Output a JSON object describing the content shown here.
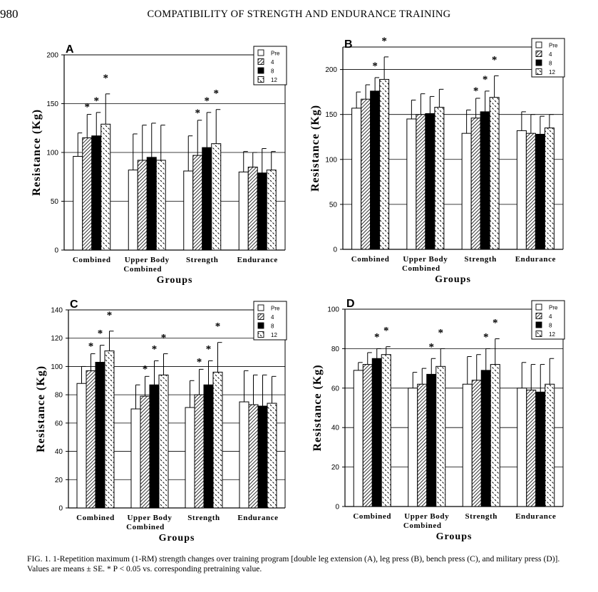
{
  "header": {
    "page_number": "980",
    "running_title": "COMPATIBILITY OF STRENGTH AND ENDURANCE TRAINING"
  },
  "caption": {
    "label": "FIG. 1.",
    "text": "1-Repetition maximum (1-RM) strength changes over training program [double leg extension (A), leg press (B), bench press (C), and military press (D)]. Values are means ± SE. * P < 0.05 vs. corresponding pretraining value."
  },
  "colors": {
    "Pre": "#ffffff",
    "4": "hatched",
    "8": "#000000",
    "12": "dashed"
  },
  "chart_data": [
    {
      "panel": "A",
      "type": "bar",
      "ylabel": "Resistance (Kg)",
      "xlabel": "Groups",
      "categories": [
        "Combined",
        "Upper Body Combined",
        "Strength",
        "Endurance"
      ],
      "ylim": [
        0,
        200
      ],
      "yticks": [
        0,
        50,
        100,
        150,
        200
      ],
      "legend": "top-right",
      "error_bars": "SE",
      "series": [
        {
          "name": "Pre",
          "values": [
            96,
            82,
            81,
            80
          ],
          "error_top": [
            120,
            119,
            117,
            101
          ],
          "significant": [
            false,
            false,
            false,
            false
          ]
        },
        {
          "name": "4",
          "values": [
            115,
            92,
            97,
            85
          ],
          "error_top": [
            139,
            128,
            133,
            100
          ],
          "significant": [
            true,
            false,
            true,
            false
          ]
        },
        {
          "name": "8",
          "values": [
            117,
            95,
            105,
            79
          ],
          "error_top": [
            141,
            130,
            141,
            104
          ],
          "significant": [
            true,
            false,
            true,
            false
          ]
        },
        {
          "name": "12",
          "values": [
            129,
            92,
            109,
            82
          ],
          "error_top": [
            160,
            128,
            144,
            101
          ],
          "significant": [
            true,
            false,
            true,
            false
          ]
        }
      ]
    },
    {
      "panel": "B",
      "type": "bar",
      "ylabel": "Resistance (Kg)",
      "xlabel": "Groups",
      "categories": [
        "Combined",
        "Upper Body Combined",
        "Strength",
        "Endurance"
      ],
      "ylim": [
        0,
        225
      ],
      "yticks": [
        0,
        50,
        100,
        150,
        200
      ],
      "legend": "top-right",
      "error_bars": "SE",
      "series": [
        {
          "name": "Pre",
          "values": [
            157,
            145,
            129,
            132
          ],
          "error_top": [
            175,
            166,
            155,
            153
          ],
          "significant": [
            false,
            false,
            false,
            false
          ]
        },
        {
          "name": "4",
          "values": [
            167,
            150,
            146,
            129
          ],
          "error_top": [
            183,
            173,
            168,
            150
          ],
          "significant": [
            false,
            false,
            true,
            false
          ]
        },
        {
          "name": "8",
          "values": [
            176,
            151,
            153,
            128
          ],
          "error_top": [
            191,
            170,
            176,
            148
          ],
          "significant": [
            true,
            false,
            true,
            false
          ]
        },
        {
          "name": "12",
          "values": [
            189,
            158,
            169,
            135
          ],
          "error_top": [
            214,
            178,
            193,
            150
          ],
          "significant": [
            true,
            false,
            true,
            false
          ]
        }
      ]
    },
    {
      "panel": "C",
      "type": "bar",
      "ylabel": "Resistance (Kg)",
      "xlabel": "Groups",
      "categories": [
        "Combined",
        "Upper Body Combined",
        "Strength",
        "Endurance"
      ],
      "ylim": [
        0,
        140
      ],
      "yticks": [
        0,
        20,
        40,
        60,
        80,
        100,
        120,
        140
      ],
      "legend": "top-right",
      "error_bars": "SE",
      "series": [
        {
          "name": "Pre",
          "values": [
            88,
            70,
            71,
            75
          ],
          "error_top": [
            100,
            87,
            90,
            97
          ],
          "significant": [
            false,
            false,
            false,
            false
          ]
        },
        {
          "name": "4",
          "values": [
            97,
            79,
            80,
            73
          ],
          "error_top": [
            109,
            93,
            98,
            94
          ],
          "significant": [
            true,
            true,
            true,
            false
          ]
        },
        {
          "name": "8",
          "values": [
            103,
            87,
            87,
            72
          ],
          "error_top": [
            115,
            104,
            104,
            94
          ],
          "significant": [
            true,
            true,
            true,
            false
          ]
        },
        {
          "name": "12",
          "values": [
            111,
            94,
            96,
            74
          ],
          "error_top": [
            125,
            109,
            117,
            93
          ],
          "significant": [
            true,
            true,
            true,
            false
          ]
        }
      ]
    },
    {
      "panel": "D",
      "type": "bar",
      "ylabel": "Resistance (Kg)",
      "xlabel": "Groups",
      "categories": [
        "Combined",
        "Upper Body Combined",
        "Strength",
        "Endurance"
      ],
      "ylim": [
        0,
        100
      ],
      "yticks": [
        0,
        20,
        40,
        60,
        80,
        100
      ],
      "legend": "top-right",
      "error_bars": "SE",
      "series": [
        {
          "name": "Pre",
          "values": [
            69,
            60,
            62,
            60
          ],
          "error_top": [
            73,
            68,
            76,
            73
          ],
          "significant": [
            false,
            false,
            false,
            false
          ]
        },
        {
          "name": "4",
          "values": [
            72,
            62,
            64,
            59
          ],
          "error_top": [
            78,
            70,
            77,
            72
          ],
          "significant": [
            false,
            false,
            false,
            false
          ]
        },
        {
          "name": "8",
          "values": [
            75,
            67,
            69,
            58
          ],
          "error_top": [
            80,
            75,
            80,
            72
          ],
          "significant": [
            true,
            true,
            true,
            false
          ]
        },
        {
          "name": "12",
          "values": [
            77,
            71,
            72,
            62
          ],
          "error_top": [
            81,
            80,
            85,
            75
          ],
          "significant": [
            true,
            true,
            true,
            false
          ]
        }
      ]
    }
  ]
}
